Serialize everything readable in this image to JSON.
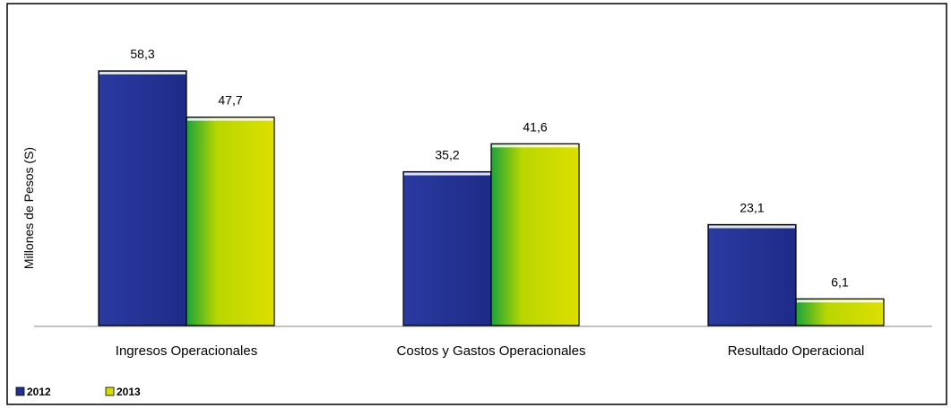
{
  "chart_data": {
    "type": "bar",
    "title": "",
    "ylabel": "Millones de Pesos (S)",
    "xlabel": "",
    "categories": [
      "Ingresos Operacionales",
      "Costos y Gastos Operacionales",
      "Resultado Operacional"
    ],
    "series": [
      {
        "name": "2012",
        "values": [
          58.3,
          35.2,
          23.1
        ],
        "labels": [
          "58,3",
          "35,2",
          "23,1"
        ],
        "color": "#243191"
      },
      {
        "name": "2013",
        "values": [
          47.7,
          41.6,
          6.1
        ],
        "labels": [
          "47,7",
          "41,6",
          "6,1"
        ],
        "color": "#d4dd00"
      }
    ],
    "ylim": [
      0,
      58.3
    ],
    "grid": false,
    "legend": "bottom-left"
  }
}
